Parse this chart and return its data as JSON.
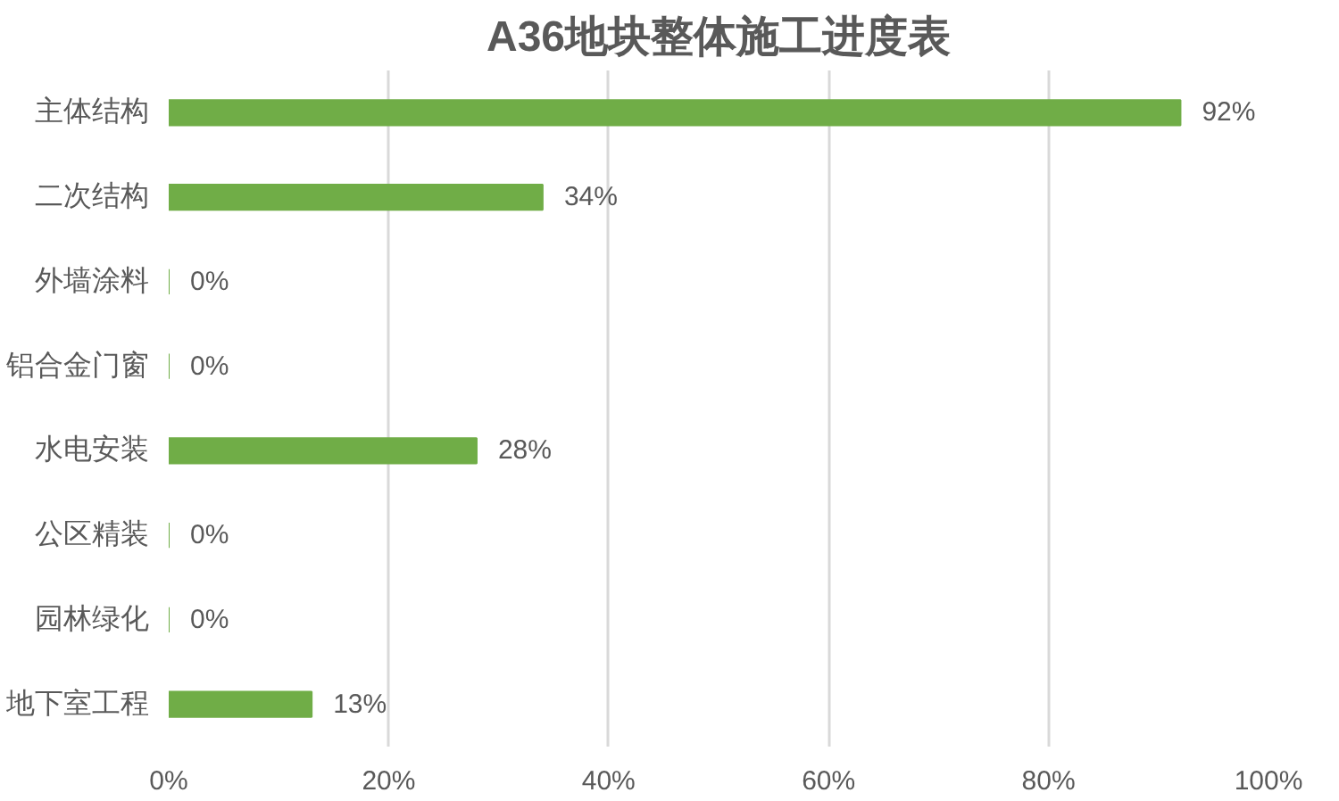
{
  "chart_data": {
    "type": "bar",
    "orientation": "horizontal",
    "title": "A36地块整体施工进度表",
    "categories": [
      "主体结构",
      "二次结构",
      "外墙涂料",
      "铝合金门窗",
      "水电安装",
      "公区精装",
      "园林绿化",
      "地下室工程"
    ],
    "values": [
      92,
      34,
      0,
      0,
      28,
      0,
      0,
      13
    ],
    "value_labels": [
      "92%",
      "34%",
      "0%",
      "0%",
      "28%",
      "0%",
      "0%",
      "13%"
    ],
    "color": "#70ad47",
    "xlim": [
      0,
      100
    ],
    "xticks": [
      {
        "value": 0,
        "label": "0%"
      },
      {
        "value": 20,
        "label": "20%"
      },
      {
        "value": 40,
        "label": "40%"
      },
      {
        "value": 60,
        "label": "60%"
      },
      {
        "value": 80,
        "label": "80%"
      },
      {
        "value": 100,
        "label": "100%"
      }
    ],
    "grid": "x"
  }
}
